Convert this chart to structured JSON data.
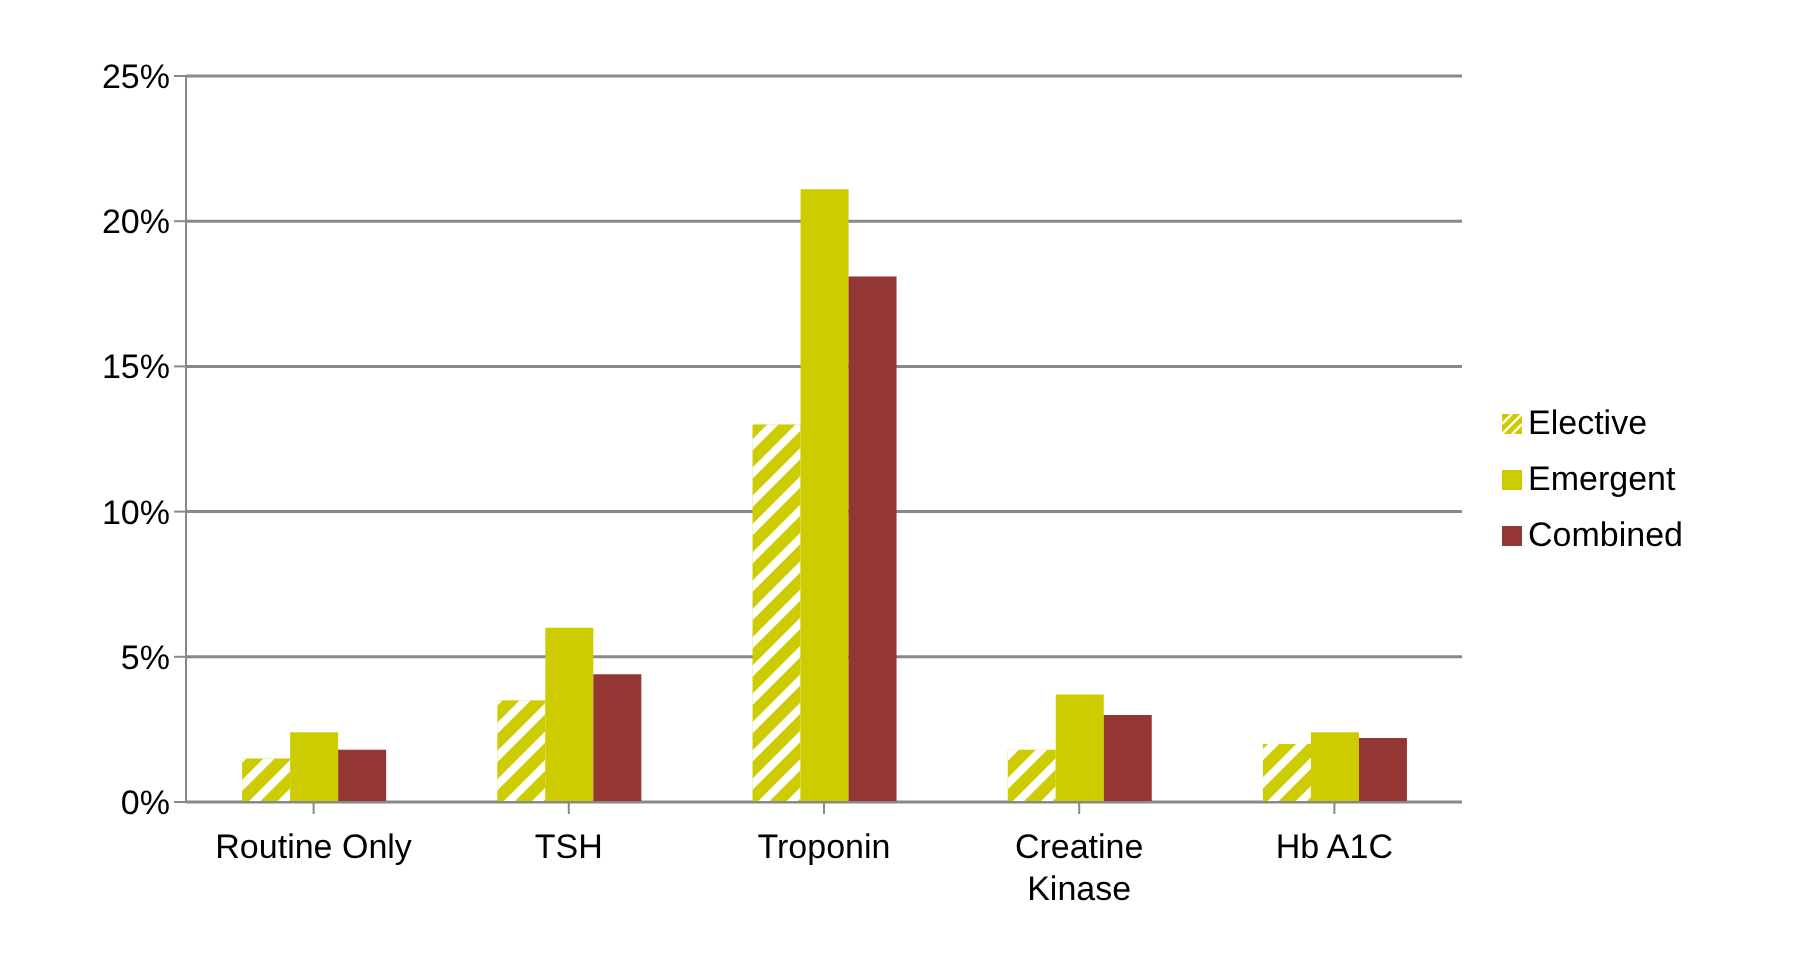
{
  "chart_data": {
    "type": "bar",
    "categories": [
      "Routine Only",
      "TSH",
      "Troponin",
      "Creatine Kinase",
      "Hb A1C"
    ],
    "series": [
      {
        "name": "Elective",
        "color": "#cccc00",
        "values": [
          1.5,
          3.5,
          13.0,
          1.8,
          2.0
        ]
      },
      {
        "name": "Emergent",
        "color": "#cccc00",
        "values": [
          2.4,
          6.0,
          21.1,
          3.7,
          2.4
        ]
      },
      {
        "name": "Combined",
        "color": "#943634",
        "values": [
          1.8,
          4.4,
          18.1,
          3.0,
          2.2
        ]
      }
    ],
    "ylim": [
      0,
      25
    ],
    "yticks": [
      {
        "value": 0,
        "label": "0%"
      },
      {
        "value": 5,
        "label": "5%"
      },
      {
        "value": 10,
        "label": "10%"
      },
      {
        "value": 15,
        "label": "15%"
      },
      {
        "value": 20,
        "label": "20%"
      },
      {
        "value": 25,
        "label": "25%"
      }
    ],
    "grid": "y",
    "legend": "right"
  }
}
